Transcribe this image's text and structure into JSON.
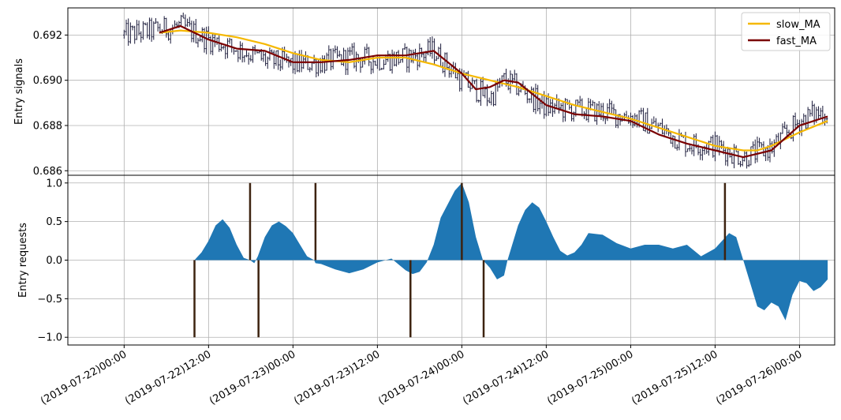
{
  "chart_data": [
    {
      "type": "line",
      "panel": "top",
      "title": "",
      "xlabel": "",
      "ylabel": "Entry signals",
      "ylim": [
        0.6858,
        0.6932
      ],
      "yticks": [
        0.686,
        0.688,
        0.69,
        0.692
      ],
      "ytick_labels": [
        "0.686",
        "0.688",
        "0.690",
        "0.692"
      ],
      "grid": true,
      "legend": {
        "position": "top-right",
        "entries": [
          "slow_MA",
          "fast_MA"
        ]
      },
      "x_hours_range": [
        -8,
        101
      ],
      "series": [
        {
          "name": "price",
          "style": "ohlc",
          "color": "#1a1a3a",
          "x_hours": [
            0,
            8,
            12,
            16,
            20,
            24,
            28,
            32,
            36,
            40,
            44,
            48,
            52,
            54,
            56,
            60,
            64,
            68,
            72,
            76,
            80,
            84,
            88,
            92,
            96,
            98,
            100
          ],
          "values": [
            0.692,
            0.6924,
            0.6918,
            0.6914,
            0.6909,
            0.6907,
            0.6908,
            0.691,
            0.6909,
            0.691,
            0.6913,
            0.69,
            0.6892,
            0.69,
            0.6897,
            0.6888,
            0.6887,
            0.6886,
            0.6884,
            0.6879,
            0.6872,
            0.6871,
            0.6866,
            0.687,
            0.6882,
            0.6885,
            0.6886
          ]
        },
        {
          "name": "slow_MA",
          "color": "#f5b800",
          "x_hours": [
            5,
            8,
            12,
            16,
            20,
            24,
            28,
            32,
            36,
            40,
            44,
            48,
            52,
            56,
            60,
            64,
            68,
            72,
            76,
            80,
            84,
            88,
            90,
            92,
            96,
            100
          ],
          "values": [
            0.6921,
            0.6922,
            0.6921,
            0.6919,
            0.6916,
            0.6912,
            0.6909,
            0.6908,
            0.691,
            0.691,
            0.6907,
            0.6903,
            0.69,
            0.6897,
            0.6893,
            0.6889,
            0.6886,
            0.6883,
            0.6879,
            0.6875,
            0.6871,
            0.6869,
            0.6869,
            0.6871,
            0.6877,
            0.6882
          ]
        },
        {
          "name": "fast_MA",
          "color": "#7a0000",
          "x_hours": [
            5,
            8,
            12,
            16,
            20,
            24,
            28,
            32,
            36,
            40,
            44,
            48,
            50,
            52,
            54,
            56,
            58,
            60,
            64,
            68,
            72,
            76,
            80,
            84,
            88,
            92,
            96,
            100
          ],
          "values": [
            0.6921,
            0.6924,
            0.6918,
            0.6914,
            0.6913,
            0.6908,
            0.6908,
            0.6909,
            0.6911,
            0.6911,
            0.6913,
            0.6903,
            0.6896,
            0.6897,
            0.69,
            0.6899,
            0.6894,
            0.6889,
            0.6885,
            0.6884,
            0.6882,
            0.6876,
            0.6872,
            0.6869,
            0.6866,
            0.6869,
            0.688,
            0.6884
          ]
        }
      ]
    },
    {
      "type": "area",
      "panel": "bottom",
      "title": "",
      "xlabel": "",
      "ylabel": "Entry requests",
      "ylim": [
        -1.1,
        1.1
      ],
      "yticks": [
        -1.0,
        -0.5,
        0.0,
        0.5,
        1.0
      ],
      "ytick_labels": [
        "−1.0",
        "−0.5",
        "0.0",
        "0.5",
        "1.0"
      ],
      "grid": true,
      "x_hours_range": [
        -8,
        101
      ],
      "x_ticks_hours": [
        0,
        12,
        24,
        36,
        48,
        60,
        72,
        84,
        96
      ],
      "x_tick_labels": [
        "(2019-07-22)00:00",
        "(2019-07-22)12:00",
        "(2019-07-23)00:00",
        "(2019-07-23)12:00",
        "(2019-07-24)00:00",
        "(2019-07-24)12:00",
        "(2019-07-25)00:00",
        "(2019-07-25)12:00",
        "(2019-07-26)00:00"
      ],
      "series": [
        {
          "name": "entry_requests",
          "color": "#1f77b4",
          "x_hours": [
            10,
            11,
            12,
            13,
            14,
            15,
            16,
            17,
            17.9,
            18.5,
            19,
            20,
            21,
            22,
            23,
            24,
            25,
            26,
            27,
            27.2,
            28,
            30,
            32,
            34,
            36,
            38,
            40,
            41,
            42,
            43,
            44,
            45,
            47,
            48,
            49,
            50,
            51,
            52,
            53,
            54,
            54.5,
            55,
            56,
            57,
            58,
            59,
            60,
            61,
            62,
            63,
            64,
            65,
            66,
            68,
            70,
            72,
            74,
            76,
            78,
            80,
            82,
            84,
            86,
            87,
            88,
            89,
            90,
            91,
            92,
            93,
            94,
            95,
            96,
            97,
            98,
            99,
            100
          ],
          "values": [
            0,
            0.1,
            0.25,
            0.45,
            0.53,
            0.42,
            0.2,
            0.03,
            0,
            -0.04,
            0.05,
            0.3,
            0.45,
            0.5,
            0.44,
            0.35,
            0.2,
            0.05,
            0,
            -0.04,
            -0.05,
            -0.12,
            -0.17,
            -0.12,
            -0.03,
            0.02,
            -0.13,
            -0.18,
            -0.15,
            -0.03,
            0.2,
            0.55,
            0.9,
            1.0,
            0.75,
            0.3,
            0,
            -0.1,
            -0.25,
            -0.2,
            0,
            0.15,
            0.45,
            0.65,
            0.75,
            0.68,
            0.5,
            0.3,
            0.12,
            0.06,
            0.1,
            0.2,
            0.35,
            0.33,
            0.22,
            0.15,
            0.2,
            0.2,
            0.15,
            0.2,
            0.05,
            0.15,
            0.35,
            0.3,
            0,
            -0.3,
            -0.6,
            -0.65,
            -0.55,
            -0.6,
            -0.78,
            -0.45,
            -0.27,
            -0.3,
            -0.4,
            -0.35,
            -0.25
          ]
        }
      ],
      "signals": {
        "color": "#3d2310",
        "buy_hours": [
          17.9,
          27.2,
          48.0,
          85.4
        ],
        "sell_hours": [
          10.0,
          19.1,
          40.7,
          51.1
        ]
      }
    }
  ]
}
